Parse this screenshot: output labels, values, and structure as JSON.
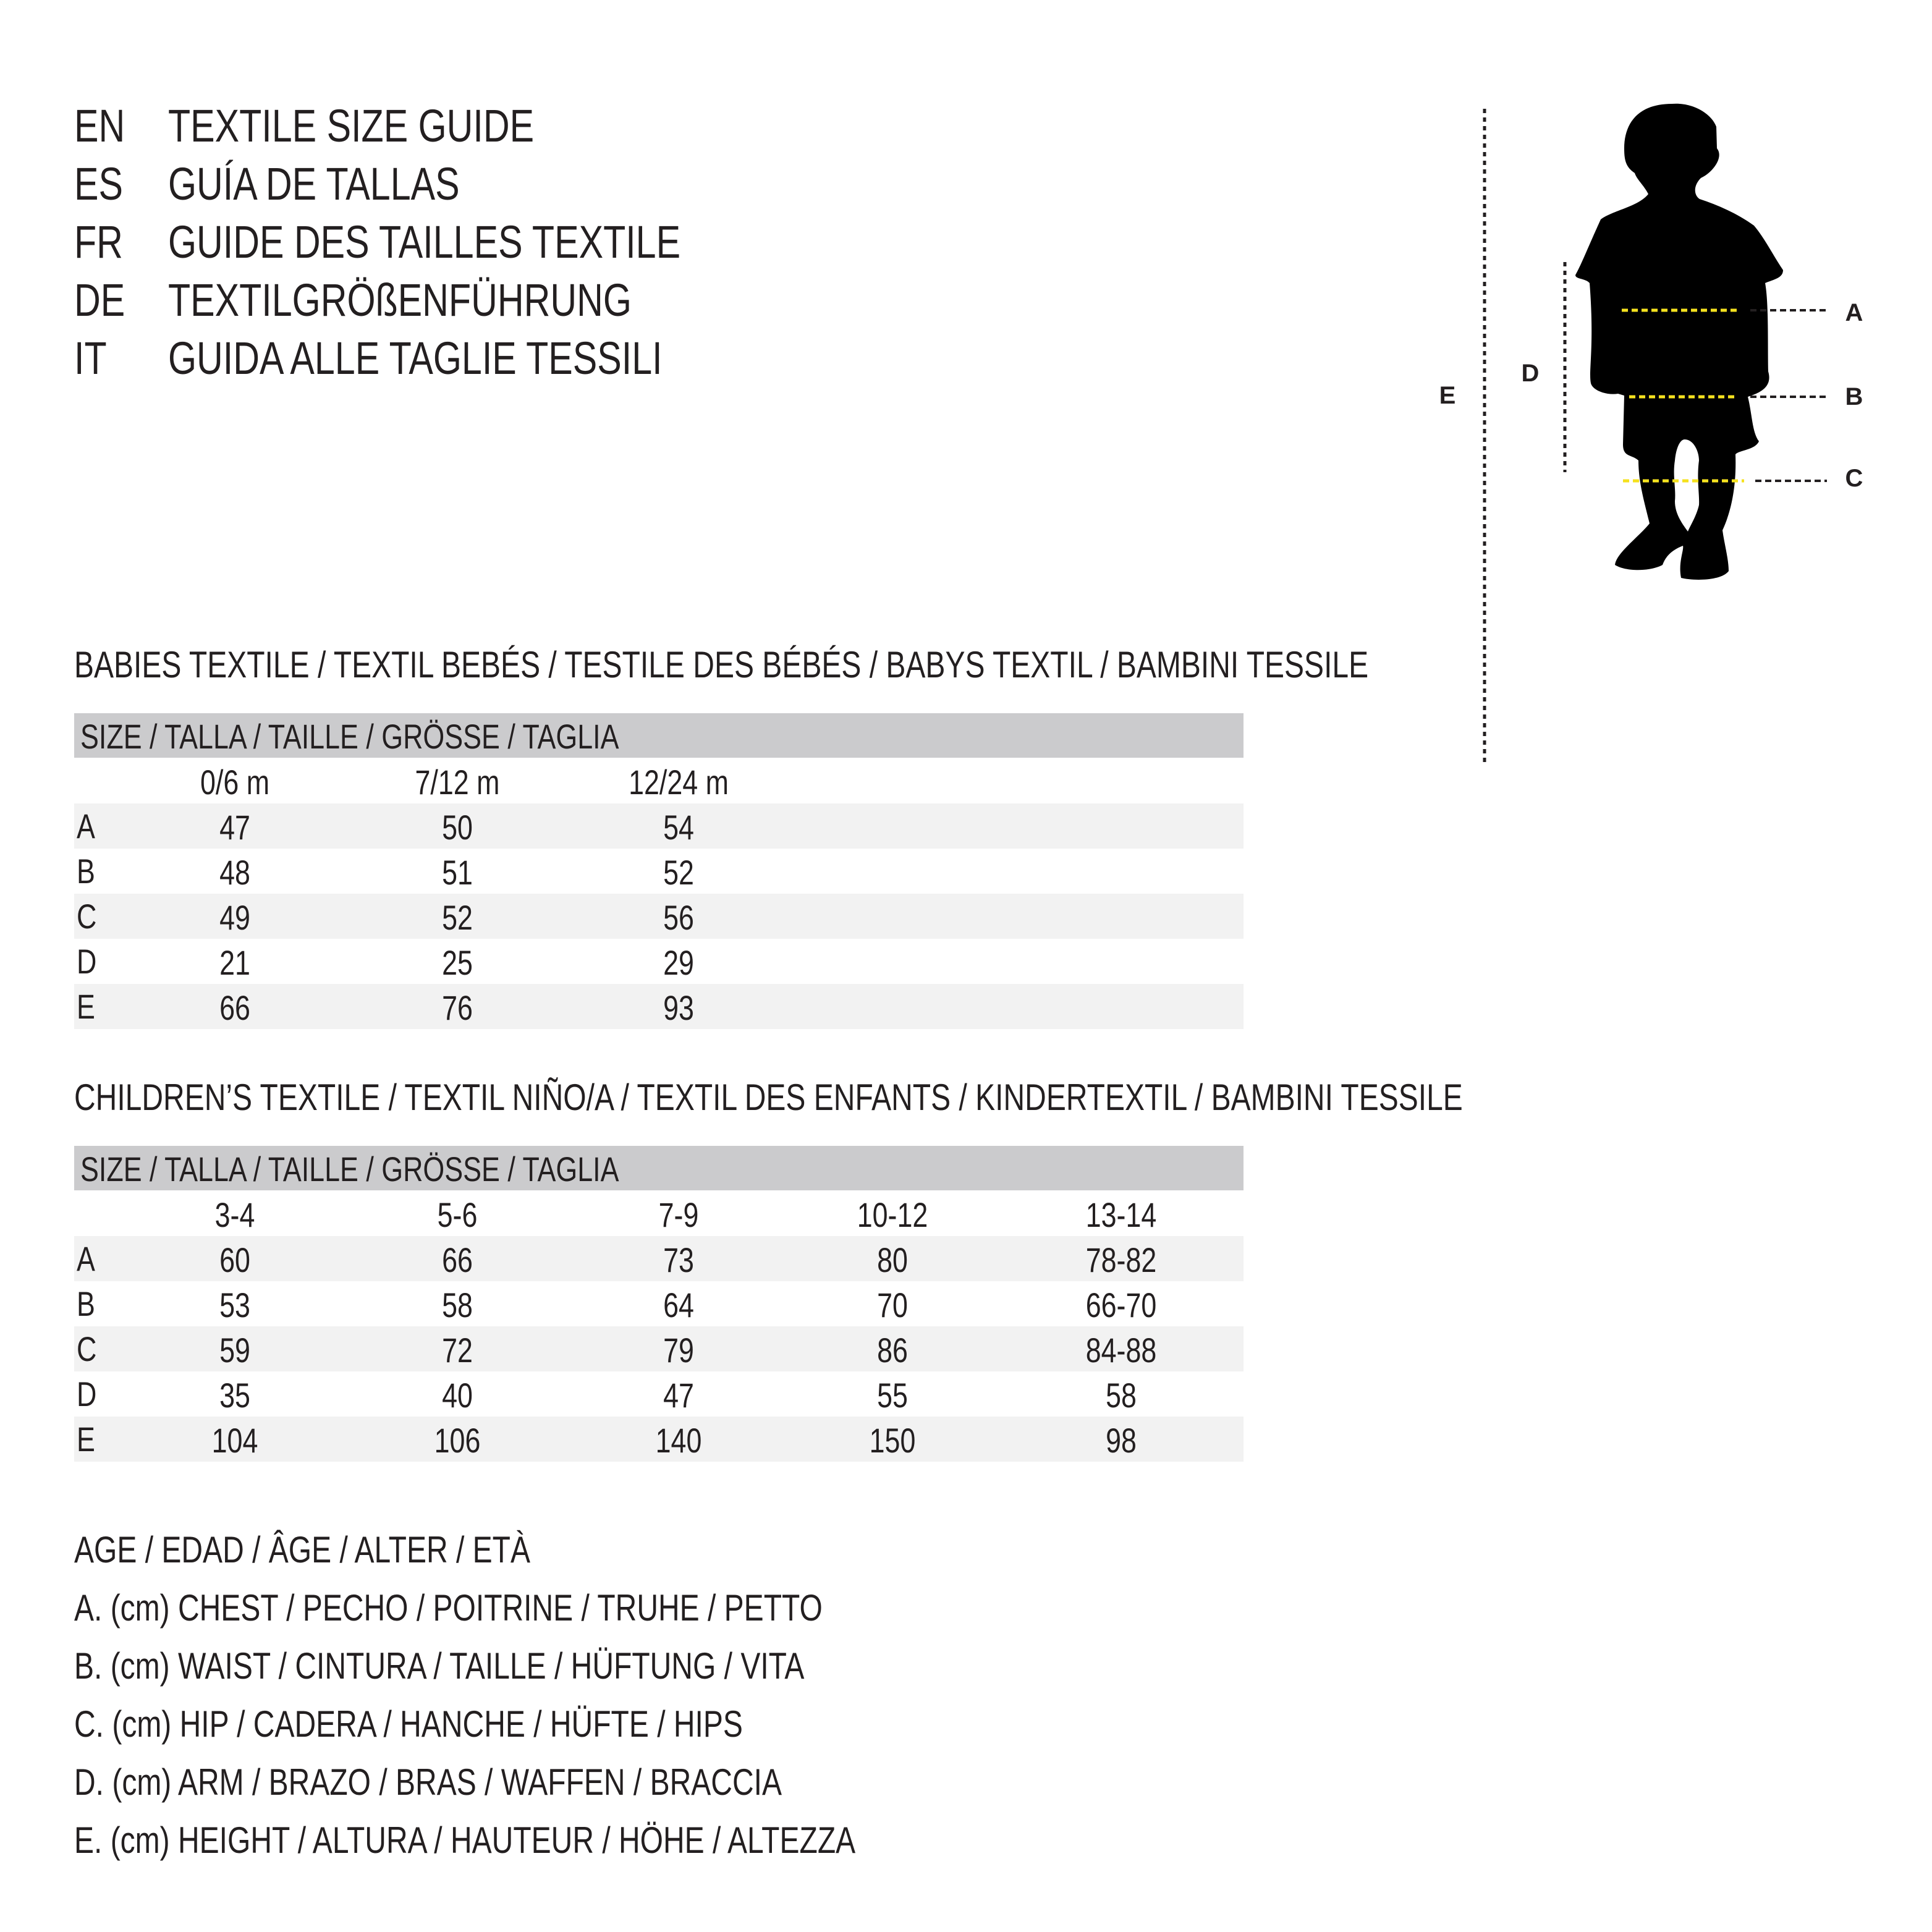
{
  "titles": [
    {
      "code": "EN",
      "text": "TEXTILE SIZE GUIDE"
    },
    {
      "code": "ES",
      "text": "GUÍA DE TALLAS"
    },
    {
      "code": "FR",
      "text": "GUIDE DES TAILLES TEXTILE"
    },
    {
      "code": "DE",
      "text": "TEXTILGRÖßENFÜHRUNG"
    },
    {
      "code": "IT",
      "text": "GUIDA ALLE TAGLIE TESSILI"
    }
  ],
  "babies": {
    "heading": "BABIES TEXTILE / TEXTIL BEBÉS / TESTILE DES BÉBÉS / BABYS TEXTIL / BAMBINI TESSILE",
    "size_header": "SIZE / TALLA / TAILLE / GRÖSSE / TAGLIA",
    "columns": [
      "0/6 m",
      "7/12 m",
      "12/24 m"
    ],
    "rows": [
      {
        "label": "A",
        "values": [
          "47",
          "50",
          "54"
        ]
      },
      {
        "label": "B",
        "values": [
          "48",
          "51",
          "52"
        ]
      },
      {
        "label": "C",
        "values": [
          "49",
          "52",
          "56"
        ]
      },
      {
        "label": "D",
        "values": [
          "21",
          "25",
          "29"
        ]
      },
      {
        "label": "E",
        "values": [
          "66",
          "76",
          "93"
        ]
      }
    ]
  },
  "children": {
    "heading": "CHILDREN’S TEXTILE / TEXTIL NIÑO/A / TEXTIL DES ENFANTS / KINDERTEXTIL / BAMBINI TESSILE",
    "size_header": "SIZE / TALLA / TAILLE / GRÖSSE / TAGLIA",
    "columns": [
      "3-4",
      "5-6",
      "7-9",
      "10-12",
      "13-14"
    ],
    "rows": [
      {
        "label": "A",
        "values": [
          "60",
          "66",
          "73",
          "80",
          "78-82"
        ]
      },
      {
        "label": "B",
        "values": [
          "53",
          "58",
          "64",
          "70",
          "66-70"
        ]
      },
      {
        "label": "C",
        "values": [
          "59",
          "72",
          "79",
          "86",
          "84-88"
        ]
      },
      {
        "label": "D",
        "values": [
          "35",
          "40",
          "47",
          "55",
          "58"
        ]
      },
      {
        "label": "E",
        "values": [
          "104",
          "106",
          "140",
          "150",
          "98"
        ]
      }
    ]
  },
  "legend": [
    "AGE / EDAD / ÂGE / ALTER / ETÀ",
    "A. (cm) CHEST / PECHO / POITRINE / TRUHE / PETTO",
    "B. (cm) WAIST / CINTURA / TAILLE / HÜFTUNG / VITA",
    "C. (cm) HIP / CADERA / HANCHE / HÜFTE / HIPS",
    "D. (cm) ARM / BRAZO / BRAS / WAFFEN / BRACCIA",
    "E. (cm) HEIGHT / ALTURA / HAUTEUR / HÖHE / ALTEZZA"
  ],
  "figure": {
    "labels": {
      "A": "A",
      "B": "B",
      "C": "C",
      "D": "D",
      "E": "E"
    },
    "icon": "child-silhouette-icon",
    "colors": {
      "silhouette": "#000000",
      "measure_line": "#f5e11f",
      "guide_line": "#231f20",
      "header_bar": "#cbcbcd",
      "row_band": "#f2f2f2"
    }
  }
}
